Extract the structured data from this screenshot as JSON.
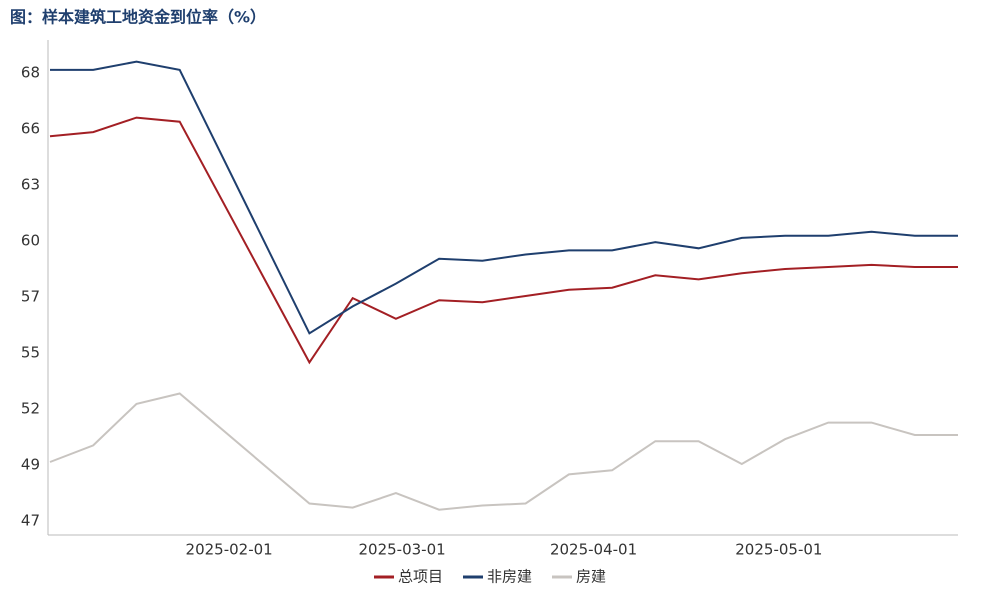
{
  "chart_data": {
    "type": "line",
    "title": "图：样本建筑工地资金到位率（%）",
    "x": [
      "2025-01-03",
      "2025-01-10",
      "2025-01-17",
      "2025-01-24",
      "2025-02-14",
      "2025-02-21",
      "2025-02-28",
      "2025-03-07",
      "2025-03-14",
      "2025-03-21",
      "2025-03-28",
      "2025-04-04",
      "2025-04-11",
      "2025-04-18",
      "2025-04-25",
      "2025-05-02",
      "2025-05-09",
      "2025-05-16",
      "2025-05-23",
      "2025-05-30"
    ],
    "series": [
      {
        "name": "总项目",
        "color": "#a31f24",
        "values": [
          65.2,
          65.4,
          66.1,
          65.9,
          54.3,
          57.4,
          56.4,
          57.3,
          57.2,
          57.5,
          57.8,
          57.9,
          58.5,
          58.3,
          58.6,
          58.8,
          58.9,
          59.0,
          58.9,
          58.9
        ]
      },
      {
        "name": "非房建",
        "color": "#1f3f6e",
        "values": [
          68.4,
          68.4,
          68.8,
          68.4,
          55.7,
          57.0,
          58.1,
          59.3,
          59.2,
          59.5,
          59.7,
          59.7,
          60.1,
          59.8,
          60.3,
          60.4,
          60.4,
          60.6,
          60.4,
          60.4
        ]
      },
      {
        "name": "房建",
        "color": "#c8c4c0",
        "values": [
          49.5,
          50.3,
          52.3,
          52.8,
          47.5,
          47.3,
          48.0,
          47.2,
          47.4,
          47.5,
          48.9,
          49.1,
          50.5,
          50.5,
          49.4,
          50.6,
          51.4,
          51.4,
          50.8,
          50.8
        ]
      }
    ],
    "xlim": [
      "2025-01-03",
      "2025-05-30"
    ],
    "xticks": [
      "2025-02-01",
      "2025-03-01",
      "2025-04-01",
      "2025-05-01"
    ],
    "ylim": [
      45.98,
      69.84
    ],
    "yticks": [
      {
        "value": 46.65,
        "label": "47"
      },
      {
        "value": 49.35,
        "label": "49"
      },
      {
        "value": 52.05,
        "label": "52"
      },
      {
        "value": 54.75,
        "label": "55"
      },
      {
        "value": 57.45,
        "label": "57"
      },
      {
        "value": 60.15,
        "label": "60"
      },
      {
        "value": 62.85,
        "label": "63"
      },
      {
        "value": 65.55,
        "label": "66"
      },
      {
        "value": 68.25,
        "label": "68"
      }
    ],
    "grid": false,
    "legend": "bottom"
  }
}
